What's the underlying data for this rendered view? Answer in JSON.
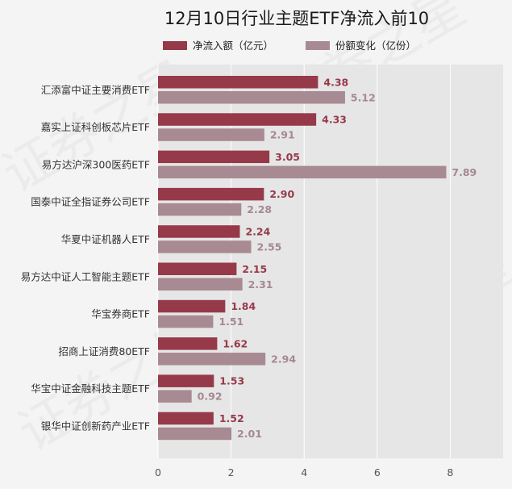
{
  "chart_data": {
    "type": "bar",
    "orientation": "horizontal",
    "title": "12月10日行业主题ETF净流入前10",
    "xlim": [
      0,
      9.5
    ],
    "xticks": [
      0,
      2,
      4,
      6,
      8
    ],
    "grid": true,
    "legend_position": "top",
    "categories": [
      "汇添富中证主要消费ETF",
      "嘉实上证科创板芯片ETF",
      "易方达沪深300医药ETF",
      "国泰中证全指证券公司ETF",
      "华夏中证机器人ETF",
      "易方达中证人工智能主题ETF",
      "华宝券商ETF",
      "招商上证消费80ETF",
      "华宝中证金融科技主题ETF",
      "银华中证创新药产业ETF"
    ],
    "series": [
      {
        "name": "净流入额（亿元）",
        "color": "#963a4a",
        "label_color": "#963a4a",
        "values": [
          4.38,
          4.33,
          3.05,
          2.9,
          2.24,
          2.15,
          1.84,
          1.62,
          1.53,
          1.52
        ]
      },
      {
        "name": "份额变化（亿份）",
        "color": "#a88a93",
        "label_color": "#a58893",
        "values": [
          5.12,
          2.91,
          7.89,
          2.28,
          2.55,
          2.31,
          1.51,
          2.94,
          0.92,
          2.01
        ]
      }
    ]
  },
  "colors": {
    "background": "#f4f4f4",
    "plot_background": "#e6e6e6",
    "gridline": "#ffffff"
  }
}
